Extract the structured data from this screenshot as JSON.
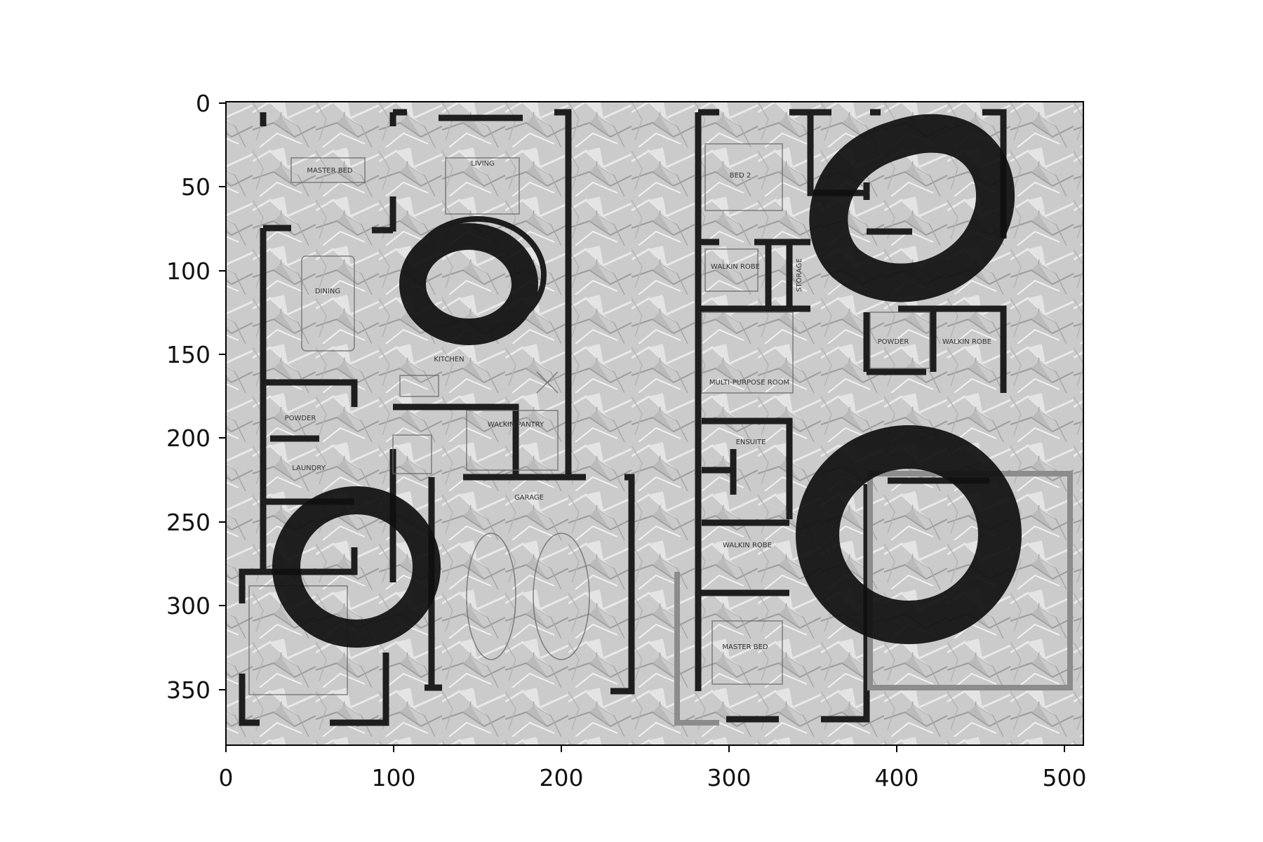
{
  "figure": {
    "type": "image_plot",
    "content": "grayscale floor plan on crumpled paper with ink-ring stains",
    "x_axis": {
      "ticks": [
        "0",
        "100",
        "200",
        "300",
        "400",
        "500"
      ],
      "range": [
        0,
        512
      ]
    },
    "y_axis": {
      "ticks": [
        "0",
        "50",
        "100",
        "150",
        "200",
        "250",
        "300",
        "350"
      ],
      "range": [
        0,
        384
      ],
      "inverted": true
    },
    "rooms": [
      {
        "id": "master-bed",
        "text": "MASTER BED"
      },
      {
        "id": "living",
        "text": "LIVING"
      },
      {
        "id": "dining",
        "text": "DINING"
      },
      {
        "id": "kitchen",
        "text": "KITCHEN"
      },
      {
        "id": "powder-1",
        "text": "POWDER"
      },
      {
        "id": "laundry",
        "text": "LAUNDRY"
      },
      {
        "id": "walkin-pantry",
        "text": "WALKIN PANTRY"
      },
      {
        "id": "garage",
        "text": "GARAGE"
      },
      {
        "id": "bed-2",
        "text": "BED 2"
      },
      {
        "id": "walkin-robe-1",
        "text": "WALKIN ROBE"
      },
      {
        "id": "storage",
        "text": "STORAGE"
      },
      {
        "id": "powder-2",
        "text": "POWDER"
      },
      {
        "id": "walkin-robe-2",
        "text": "WALKIN ROBE"
      },
      {
        "id": "multi-purpose",
        "text": "MULTI-PURPOSE ROOM"
      },
      {
        "id": "ensuite",
        "text": "ENSUITE"
      },
      {
        "id": "walkin-robe-3",
        "text": "WALKIN ROBE"
      },
      {
        "id": "master-bed-2",
        "text": "MASTER BED"
      }
    ],
    "colors": {
      "paper": "#cfcfcf",
      "wall": "#1e1e1e",
      "ink": "#0f0f0f",
      "frame": "#000000"
    }
  }
}
